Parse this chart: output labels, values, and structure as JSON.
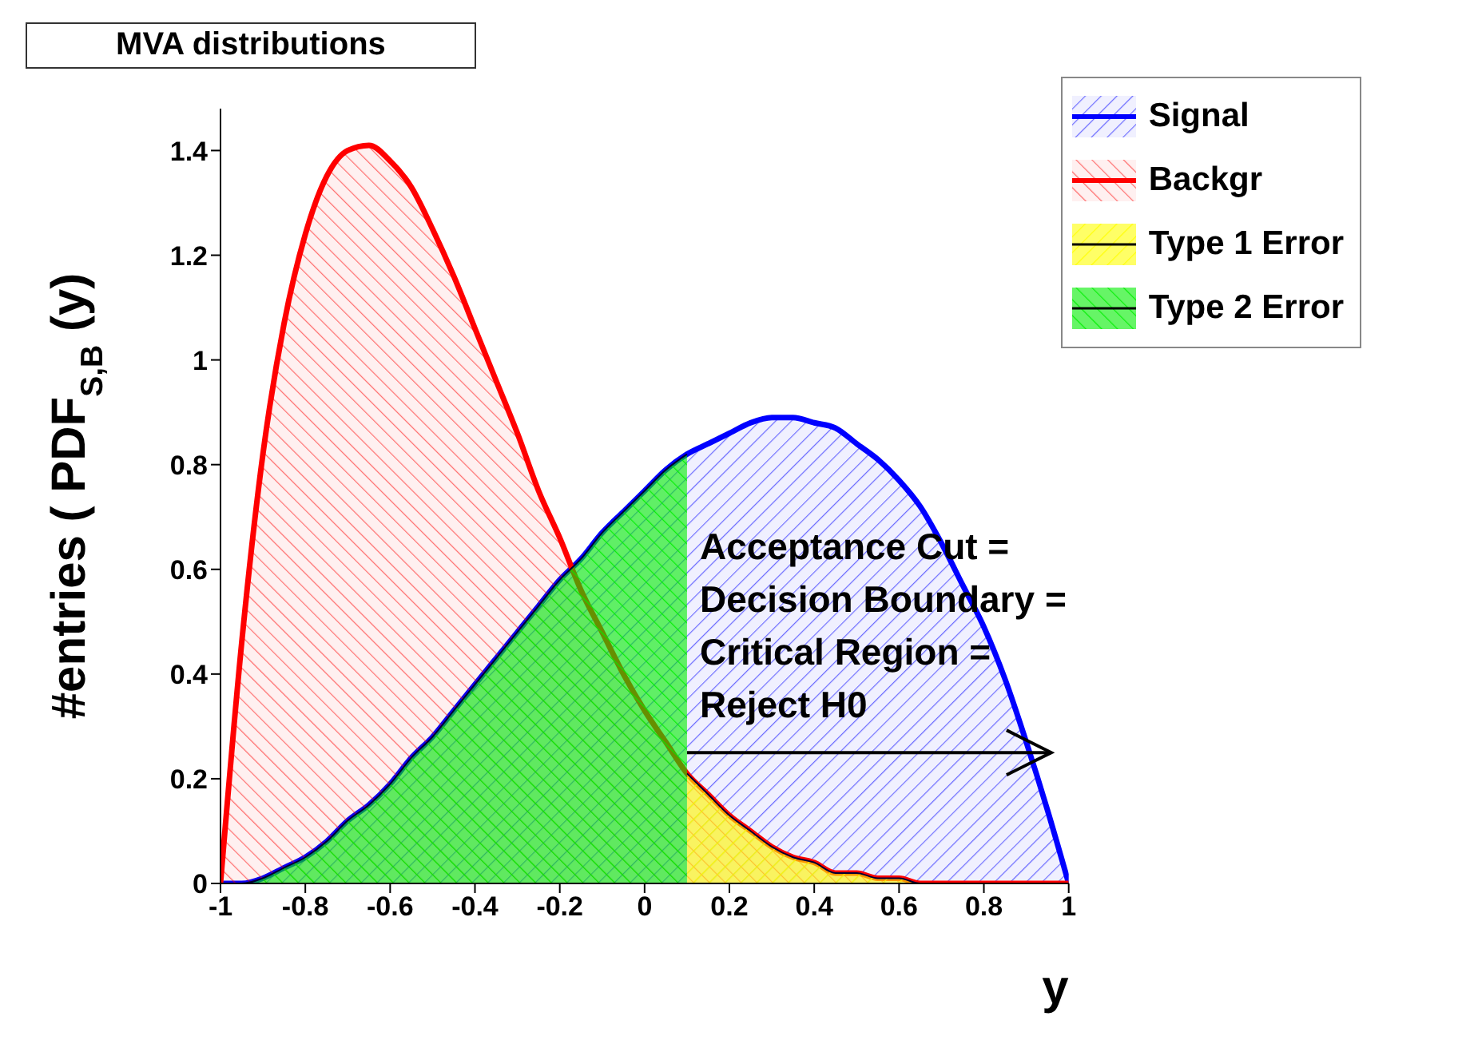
{
  "chart_data": {
    "type": "area",
    "title": "MVA distributions",
    "xlabel": "y",
    "ylabel": "#entries ( PDF$_{S,B}$(y)",
    "annotations": [
      {
        "text": "Acceptance Cut =\nDecision Boundary =\nCritical Region =\nReject H0",
        "x": 0.1,
        "y": 0.25
      }
    ],
    "xlim": [
      -1,
      1
    ],
    "xticks": [
      -1,
      -0.8,
      -0.6,
      -0.4,
      -0.2,
      0,
      0.2,
      0.4,
      0.6,
      0.8,
      1
    ],
    "ylim": [
      0,
      1.48
    ],
    "yticks": [
      0,
      0.2,
      0.4,
      0.6,
      0.8,
      1,
      1.2,
      1.4
    ],
    "legend": "top right",
    "series": [
      {
        "name": "Signal",
        "color": "#0000ff",
        "x": [
          -1,
          -0.95,
          -0.9,
          -0.85,
          -0.8,
          -0.75,
          -0.7,
          -0.65,
          -0.6,
          -0.55,
          -0.5,
          -0.45,
          -0.4,
          -0.35,
          -0.3,
          -0.25,
          -0.2,
          -0.15,
          -0.1,
          -0.05,
          0,
          0.05,
          0.1,
          0.15,
          0.2,
          0.25,
          0.3,
          0.35,
          0.4,
          0.45,
          0.5,
          0.55,
          0.6,
          0.65,
          0.7,
          0.75,
          0.8,
          0.85,
          0.9,
          0.95,
          1
        ],
        "values": [
          0,
          0,
          0.01,
          0.03,
          0.05,
          0.08,
          0.12,
          0.15,
          0.19,
          0.24,
          0.28,
          0.33,
          0.38,
          0.43,
          0.48,
          0.53,
          0.58,
          0.62,
          0.67,
          0.71,
          0.75,
          0.79,
          0.82,
          0.84,
          0.86,
          0.88,
          0.89,
          0.89,
          0.88,
          0.87,
          0.84,
          0.81,
          0.77,
          0.72,
          0.65,
          0.57,
          0.49,
          0.39,
          0.27,
          0.14,
          0
        ]
      },
      {
        "name": "Backgr",
        "color": "#ff0000",
        "x": [
          -1,
          -0.95,
          -0.9,
          -0.85,
          -0.8,
          -0.75,
          -0.7,
          -0.65,
          -0.6,
          -0.55,
          -0.5,
          -0.45,
          -0.4,
          -0.35,
          -0.3,
          -0.25,
          -0.2,
          -0.15,
          -0.1,
          -0.05,
          0,
          0.05,
          0.1,
          0.15,
          0.2,
          0.25,
          0.3,
          0.35,
          0.4,
          0.45,
          0.5,
          0.55,
          0.6,
          0.65,
          0.7,
          0.75,
          0.8,
          0.85,
          0.9,
          0.95,
          1
        ],
        "values": [
          0,
          0.46,
          0.82,
          1.07,
          1.24,
          1.35,
          1.4,
          1.41,
          1.38,
          1.33,
          1.25,
          1.16,
          1.06,
          0.96,
          0.86,
          0.75,
          0.66,
          0.56,
          0.48,
          0.4,
          0.33,
          0.27,
          0.21,
          0.17,
          0.13,
          0.1,
          0.07,
          0.05,
          0.04,
          0.02,
          0.02,
          0.01,
          0.01,
          0,
          0,
          0,
          0,
          0,
          0,
          0,
          0
        ]
      },
      {
        "name": "Type 1 Error",
        "color": "#ffff00",
        "x": [
          0.1,
          0.15,
          0.2,
          0.25,
          0.3,
          0.35,
          0.4,
          0.45,
          0.5,
          0.55,
          0.6,
          0.65,
          0.7,
          0.75,
          0.8,
          0.85,
          0.9,
          0.95,
          1
        ],
        "values": [
          0.21,
          0.17,
          0.13,
          0.1,
          0.07,
          0.05,
          0.04,
          0.02,
          0.02,
          0.01,
          0.01,
          0,
          0,
          0,
          0,
          0,
          0,
          0,
          0
        ]
      },
      {
        "name": "Type 2 Error",
        "color": "#00ee00",
        "x": [
          -1,
          -0.95,
          -0.9,
          -0.85,
          -0.8,
          -0.75,
          -0.7,
          -0.65,
          -0.6,
          -0.55,
          -0.5,
          -0.45,
          -0.4,
          -0.35,
          -0.3,
          -0.25,
          -0.2,
          -0.15,
          -0.1,
          -0.05,
          0,
          0.05,
          0.1
        ],
        "values": [
          0,
          0,
          0.01,
          0.03,
          0.05,
          0.08,
          0.12,
          0.15,
          0.19,
          0.24,
          0.28,
          0.33,
          0.38,
          0.43,
          0.48,
          0.53,
          0.58,
          0.62,
          0.67,
          0.71,
          0.75,
          0.79,
          0.82
        ]
      }
    ]
  }
}
